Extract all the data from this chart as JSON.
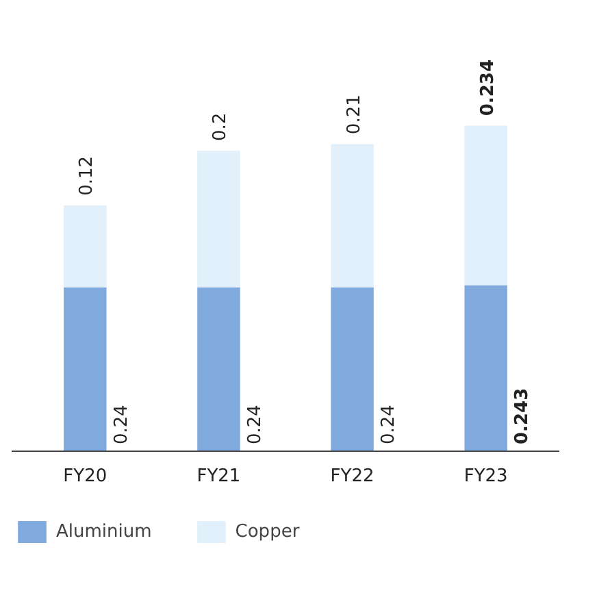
{
  "chart_data": {
    "type": "bar",
    "stacked": true,
    "categories": [
      "FY20",
      "FY21",
      "FY22",
      "FY23"
    ],
    "series": [
      {
        "name": "Aluminium",
        "color": "#80a9de",
        "values": [
          0.24,
          0.24,
          0.24,
          0.243
        ]
      },
      {
        "name": "Copper",
        "color": "#e1f0fa",
        "values": [
          0.12,
          0.2,
          0.21,
          0.234
        ]
      }
    ],
    "data_labels": true,
    "legend": "bottom",
    "grid": false
  }
}
